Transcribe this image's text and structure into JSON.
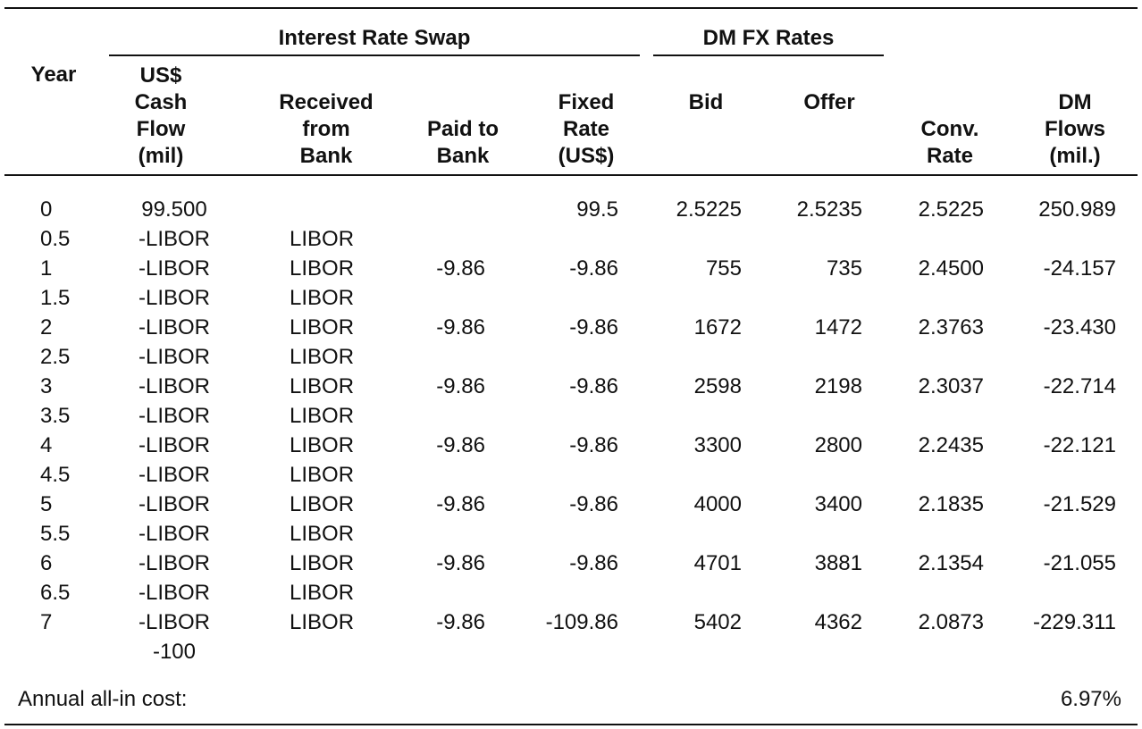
{
  "headers": {
    "year": "Year",
    "group_swap": "Interest Rate Swap",
    "group_fx": "DM FX Rates",
    "us_cash_flow": [
      "US$",
      "Cash",
      "Flow",
      "(mil)"
    ],
    "received": [
      "Received",
      "from",
      "Bank"
    ],
    "paid": [
      "Paid to",
      "Bank"
    ],
    "fixed_rate": [
      "Fixed",
      "Rate",
      "(US$)"
    ],
    "bid": "Bid",
    "offer": "Offer",
    "conv_rate": [
      "Conv.",
      "Rate"
    ],
    "dm_flows": [
      "DM",
      "Flows",
      "(mil.)"
    ]
  },
  "rows": [
    {
      "year": "0",
      "us": "99.500",
      "recv": "",
      "paid": "",
      "fixed": "99.5",
      "bid": "2.5225",
      "offer": "2.5235",
      "conv": "2.5225",
      "dm": "250.989"
    },
    {
      "year": "0.5",
      "us": "-LIBOR",
      "recv": "LIBOR",
      "paid": "",
      "fixed": "",
      "bid": "",
      "offer": "",
      "conv": "",
      "dm": ""
    },
    {
      "year": "1",
      "us": "-LIBOR",
      "recv": "LIBOR",
      "paid": "-9.86",
      "fixed": "-9.86",
      "bid": "755",
      "offer": "735",
      "conv": "2.4500",
      "dm": "-24.157"
    },
    {
      "year": "1.5",
      "us": "-LIBOR",
      "recv": "LIBOR",
      "paid": "",
      "fixed": "",
      "bid": "",
      "offer": "",
      "conv": "",
      "dm": ""
    },
    {
      "year": "2",
      "us": "-LIBOR",
      "recv": "LIBOR",
      "paid": "-9.86",
      "fixed": "-9.86",
      "bid": "1672",
      "offer": "1472",
      "conv": "2.3763",
      "dm": "-23.430"
    },
    {
      "year": "2.5",
      "us": "-LIBOR",
      "recv": "LIBOR",
      "paid": "",
      "fixed": "",
      "bid": "",
      "offer": "",
      "conv": "",
      "dm": ""
    },
    {
      "year": "3",
      "us": "-LIBOR",
      "recv": "LIBOR",
      "paid": "-9.86",
      "fixed": "-9.86",
      "bid": "2598",
      "offer": "2198",
      "conv": "2.3037",
      "dm": "-22.714"
    },
    {
      "year": "3.5",
      "us": "-LIBOR",
      "recv": "LIBOR",
      "paid": "",
      "fixed": "",
      "bid": "",
      "offer": "",
      "conv": "",
      "dm": ""
    },
    {
      "year": "4",
      "us": "-LIBOR",
      "recv": "LIBOR",
      "paid": "-9.86",
      "fixed": "-9.86",
      "bid": "3300",
      "offer": "2800",
      "conv": "2.2435",
      "dm": "-22.121"
    },
    {
      "year": "4.5",
      "us": "-LIBOR",
      "recv": "LIBOR",
      "paid": "",
      "fixed": "",
      "bid": "",
      "offer": "",
      "conv": "",
      "dm": ""
    },
    {
      "year": "5",
      "us": "-LIBOR",
      "recv": "LIBOR",
      "paid": "-9.86",
      "fixed": "-9.86",
      "bid": "4000",
      "offer": "3400",
      "conv": "2.1835",
      "dm": "-21.529"
    },
    {
      "year": "5.5",
      "us": "-LIBOR",
      "recv": "LIBOR",
      "paid": "",
      "fixed": "",
      "bid": "",
      "offer": "",
      "conv": "",
      "dm": ""
    },
    {
      "year": "6",
      "us": "-LIBOR",
      "recv": "LIBOR",
      "paid": "-9.86",
      "fixed": "-9.86",
      "bid": "4701",
      "offer": "3881",
      "conv": "2.1354",
      "dm": "-21.055"
    },
    {
      "year": "6.5",
      "us": "-LIBOR",
      "recv": "LIBOR",
      "paid": "",
      "fixed": "",
      "bid": "",
      "offer": "",
      "conv": "",
      "dm": ""
    },
    {
      "year": "7",
      "us": "-LIBOR",
      "recv": "LIBOR",
      "paid": "-9.86",
      "fixed": "-109.86",
      "bid": "5402",
      "offer": "4362",
      "conv": "2.0873",
      "dm": "-229.311"
    },
    {
      "year": "",
      "us": "-100",
      "recv": "",
      "paid": "",
      "fixed": "",
      "bid": "",
      "offer": "",
      "conv": "",
      "dm": ""
    }
  ],
  "footer": {
    "label": "Annual all-in cost:",
    "value": "6.97%"
  }
}
